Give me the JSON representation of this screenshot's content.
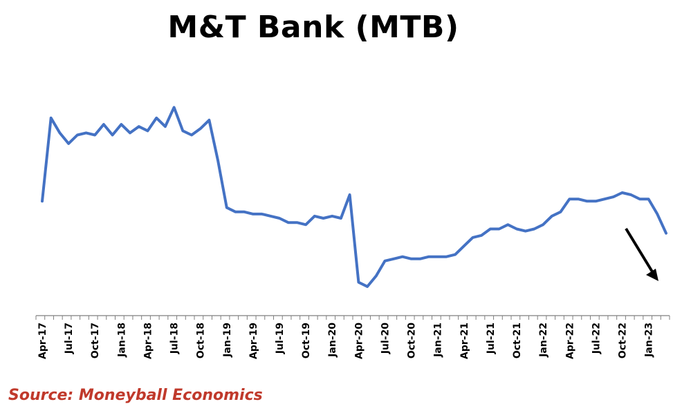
{
  "chart_data": {
    "type": "line",
    "title": "M&T Bank (MTB)",
    "xlabel": "",
    "ylabel": "",
    "tick_labels": [
      "Apr-17",
      "Jul-17",
      "Oct-17",
      "Jan-18",
      "Apr-18",
      "Jul-18",
      "Oct-18",
      "Jan-19",
      "Apr-19",
      "Jul-19",
      "Oct-19",
      "Jan-20",
      "Apr-20",
      "Jul-20",
      "Oct-20",
      "Jan-21",
      "Apr-21",
      "Jul-21",
      "Oct-21",
      "Jan-22",
      "Apr-22",
      "Jul-22",
      "Oct-22",
      "Jan-23"
    ],
    "ylim": [
      0,
      100
    ],
    "series": [
      {
        "color": "#4472c4",
        "values": [
          52,
          91,
          84,
          79,
          83,
          84,
          83,
          88,
          83,
          88,
          84,
          87,
          85,
          91,
          87,
          96,
          85,
          83,
          86,
          90,
          71,
          49,
          47,
          47,
          46,
          46,
          45,
          44,
          42,
          42,
          41,
          45,
          44,
          45,
          44,
          55,
          14,
          12,
          17,
          24,
          25,
          26,
          25,
          25,
          26,
          26,
          26,
          27,
          31,
          35,
          36,
          39,
          39,
          41,
          39,
          38,
          39,
          41,
          45,
          47,
          53,
          53,
          52,
          52,
          53,
          54,
          56,
          55,
          53,
          53,
          46,
          37
        ]
      }
    ],
    "annotations": [
      {
        "type": "arrow",
        "direction": "down-right",
        "color": "#000000"
      }
    ],
    "source": "Source: Moneyball Economics",
    "grid": false,
    "legend": "none"
  }
}
